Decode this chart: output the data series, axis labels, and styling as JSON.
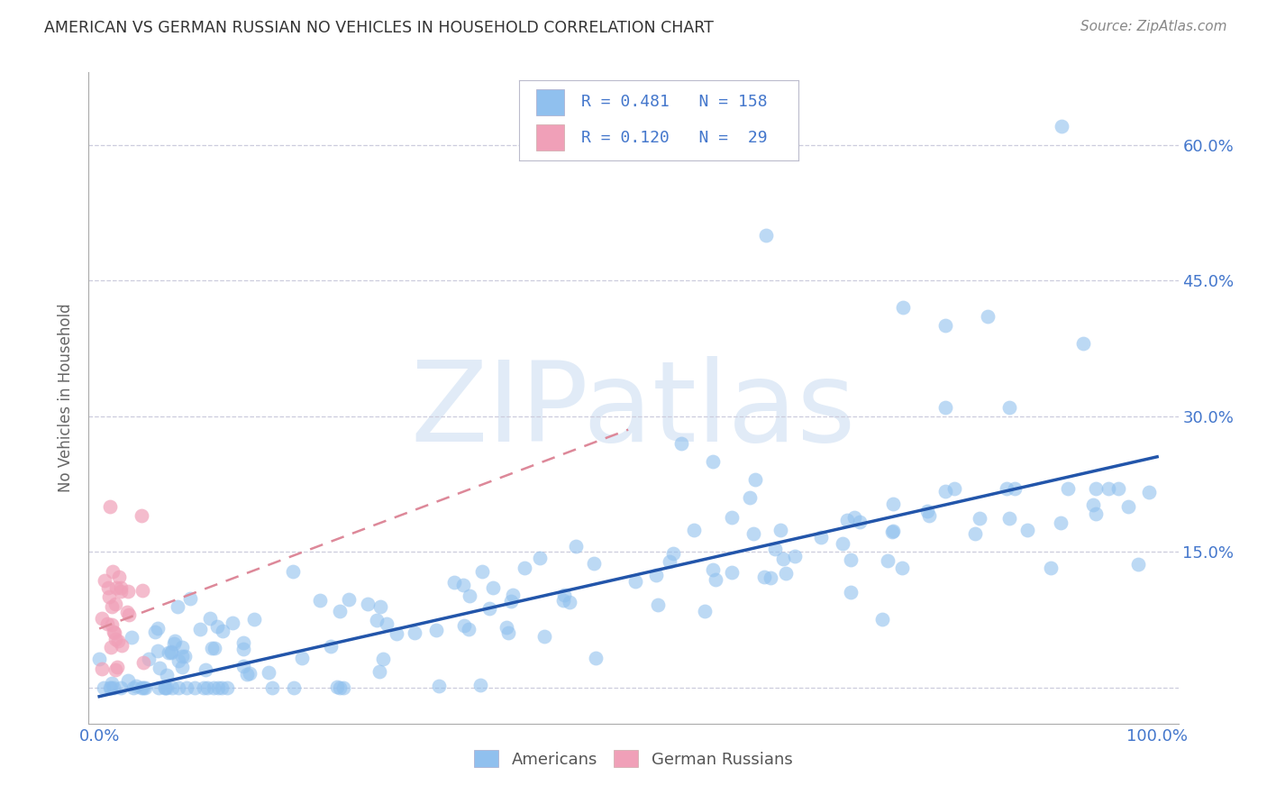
{
  "title": "AMERICAN VS GERMAN RUSSIAN NO VEHICLES IN HOUSEHOLD CORRELATION CHART",
  "source": "Source: ZipAtlas.com",
  "ylabel": "No Vehicles in Household",
  "watermark": "ZIPatlas",
  "xlim": [
    -0.01,
    1.02
  ],
  "ylim": [
    -0.04,
    0.68
  ],
  "xtick_vals": [
    0.0,
    0.2,
    0.4,
    0.6,
    0.8,
    1.0
  ],
  "xticklabels": [
    "0.0%",
    "",
    "",
    "",
    "",
    "100.0%"
  ],
  "ytick_vals": [
    0.0,
    0.15,
    0.3,
    0.45,
    0.6
  ],
  "yticklabels_right": [
    "",
    "15.0%",
    "30.0%",
    "45.0%",
    "60.0%"
  ],
  "color_american": "#90C0EE",
  "color_german_russian": "#F0A0B8",
  "color_american_line": "#2255AA",
  "color_german_russian_line": "#DD8899",
  "color_text_blue": "#4477CC",
  "background_color": "#FFFFFF",
  "grid_color": "#CCCCDD",
  "american_line_x0": 0.0,
  "american_line_x1": 1.0,
  "american_line_y0": -0.01,
  "american_line_y1": 0.255,
  "german_line_x0": 0.0,
  "german_line_x1": 0.5,
  "german_line_y0": 0.065,
  "german_line_y1": 0.285
}
